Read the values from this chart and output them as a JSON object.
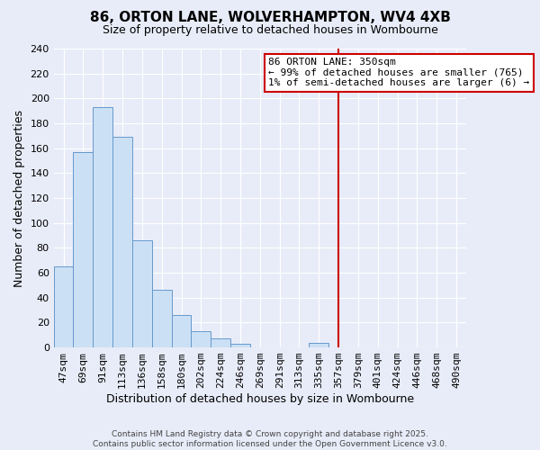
{
  "title": "86, ORTON LANE, WOLVERHAMPTON, WV4 4XB",
  "subtitle": "Size of property relative to detached houses in Wombourne",
  "xlabel": "Distribution of detached houses by size in Wombourne",
  "ylabel": "Number of detached properties",
  "bin_labels": [
    "47sqm",
    "69sqm",
    "91sqm",
    "113sqm",
    "136sqm",
    "158sqm",
    "180sqm",
    "202sqm",
    "224sqm",
    "246sqm",
    "269sqm",
    "291sqm",
    "313sqm",
    "335sqm",
    "357sqm",
    "379sqm",
    "401sqm",
    "424sqm",
    "446sqm",
    "468sqm",
    "490sqm"
  ],
  "bar_heights": [
    65,
    157,
    193,
    169,
    86,
    46,
    26,
    13,
    7,
    3,
    0,
    0,
    0,
    4,
    0,
    0,
    0,
    0,
    0,
    0,
    0
  ],
  "bar_color": "#cce0f5",
  "bar_edge_color": "#6699cc",
  "background_color": "#e8ecf8",
  "plot_bg_color": "#e8ecf8",
  "grid_color": "#ffffff",
  "vline_color": "#cc0000",
  "vline_position": 14.0,
  "annotation_title": "86 ORTON LANE: 350sqm",
  "annotation_line1": "← 99% of detached houses are smaller (765)",
  "annotation_line2": "1% of semi-detached houses are larger (6) →",
  "annotation_box_edge_color": "#cc0000",
  "annotation_box_facecolor": "#ffffff",
  "ylim": [
    0,
    240
  ],
  "yticks": [
    0,
    20,
    40,
    60,
    80,
    100,
    120,
    140,
    160,
    180,
    200,
    220,
    240
  ],
  "title_fontsize": 11,
  "subtitle_fontsize": 9,
  "xlabel_fontsize": 9,
  "ylabel_fontsize": 9,
  "tick_fontsize": 8,
  "footer_line1": "Contains HM Land Registry data © Crown copyright and database right 2025.",
  "footer_line2": "Contains public sector information licensed under the Open Government Licence v3.0.",
  "footer_fontsize": 6.5,
  "footer_color": "#444444"
}
